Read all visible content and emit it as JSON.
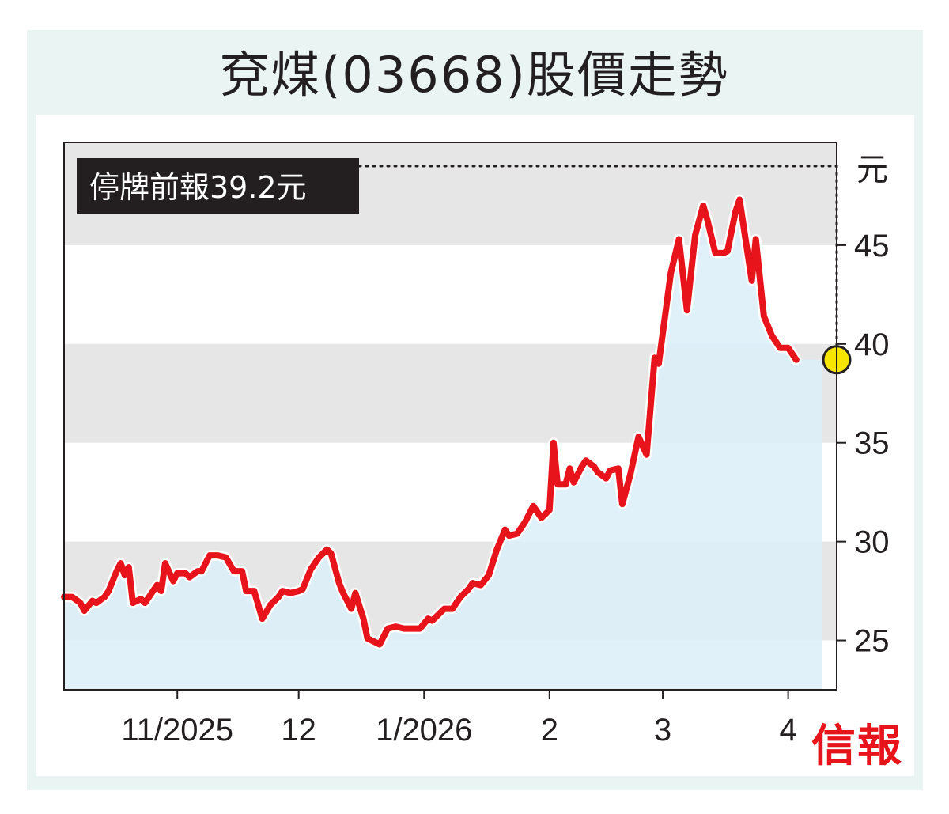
{
  "title": "兗煤(03668)股價走勢",
  "logo": "信報",
  "colors": {
    "line": "#e8141c",
    "area": "#dbeef9",
    "band": "#e6e6e6",
    "frame": "#eaf4f3",
    "marker": "#f5e500"
  },
  "chart_data": {
    "type": "line",
    "title": "兗煤(03668)股價走勢",
    "ylabel": "元",
    "ylim": [
      22.5,
      50.2
    ],
    "yticks": [
      25,
      30,
      35,
      40,
      45
    ],
    "xlim": [
      "2025-10-04",
      "2026-04-13"
    ],
    "xticks": [
      {
        "date": "2025-11-01",
        "label": "11/2025"
      },
      {
        "date": "2025-12-01",
        "label": "12"
      },
      {
        "date": "2026-01-01",
        "label": "1/2026"
      },
      {
        "date": "2026-02-01",
        "label": "2"
      },
      {
        "date": "2026-03-01",
        "label": "3"
      },
      {
        "date": "2026-04-01",
        "label": "4"
      }
    ],
    "grid": "alternating horizontal bands",
    "annotation": {
      "text": "停牌前報39.2元",
      "date": "2026-04-13",
      "value": 39.2
    },
    "series": [
      {
        "points": [
          [
            "2025-10-04",
            27.2
          ],
          [
            "2025-10-06",
            27.2
          ],
          [
            "2025-10-08",
            26.9
          ],
          [
            "2025-10-09",
            26.5
          ],
          [
            "2025-10-11",
            27.0
          ],
          [
            "2025-10-12",
            26.9
          ],
          [
            "2025-10-14",
            27.2
          ],
          [
            "2025-10-15",
            27.5
          ],
          [
            "2025-10-17",
            28.5
          ],
          [
            "2025-10-18",
            28.9
          ],
          [
            "2025-10-19",
            28.3
          ],
          [
            "2025-10-20",
            28.7
          ],
          [
            "2025-10-21",
            26.9
          ],
          [
            "2025-10-23",
            27.1
          ],
          [
            "2025-10-24",
            26.9
          ],
          [
            "2025-10-25",
            27.2
          ],
          [
            "2025-10-27",
            27.8
          ],
          [
            "2025-10-28",
            27.5
          ],
          [
            "2025-10-29",
            28.9
          ],
          [
            "2025-10-31",
            28.0
          ],
          [
            "2025-11-01",
            28.4
          ],
          [
            "2025-11-03",
            28.4
          ],
          [
            "2025-11-04",
            28.2
          ],
          [
            "2025-11-06",
            28.5
          ],
          [
            "2025-11-07",
            28.5
          ],
          [
            "2025-11-09",
            29.3
          ],
          [
            "2025-11-11",
            29.3
          ],
          [
            "2025-11-13",
            29.2
          ],
          [
            "2025-11-15",
            28.5
          ],
          [
            "2025-11-17",
            28.5
          ],
          [
            "2025-11-18",
            27.5
          ],
          [
            "2025-11-20",
            27.5
          ],
          [
            "2025-11-22",
            26.1
          ],
          [
            "2025-11-24",
            26.8
          ],
          [
            "2025-11-26",
            27.2
          ],
          [
            "2025-11-27",
            27.5
          ],
          [
            "2025-11-29",
            27.4
          ],
          [
            "2025-12-01",
            27.5
          ],
          [
            "2025-12-02",
            27.6
          ],
          [
            "2025-12-04",
            28.6
          ],
          [
            "2025-12-06",
            29.2
          ],
          [
            "2025-12-08",
            29.6
          ],
          [
            "2025-12-09",
            29.4
          ],
          [
            "2025-12-11",
            27.9
          ],
          [
            "2025-12-12",
            27.4
          ],
          [
            "2025-12-14",
            26.6
          ],
          [
            "2025-12-15",
            27.4
          ],
          [
            "2025-12-17",
            26.1
          ],
          [
            "2025-12-18",
            25.1
          ],
          [
            "2025-12-20",
            24.9
          ],
          [
            "2025-12-21",
            24.8
          ],
          [
            "2025-12-23",
            25.6
          ],
          [
            "2025-12-25",
            25.7
          ],
          [
            "2025-12-27",
            25.6
          ],
          [
            "2025-12-28",
            25.6
          ],
          [
            "2025-12-31",
            25.6
          ],
          [
            "2026-01-02",
            26.1
          ],
          [
            "2026-01-03",
            26.0
          ],
          [
            "2026-01-05",
            26.4
          ],
          [
            "2026-01-06",
            26.6
          ],
          [
            "2026-01-08",
            26.6
          ],
          [
            "2026-01-10",
            27.2
          ],
          [
            "2026-01-12",
            27.6
          ],
          [
            "2026-01-13",
            27.9
          ],
          [
            "2026-01-15",
            27.8
          ],
          [
            "2026-01-17",
            28.3
          ],
          [
            "2026-01-19",
            29.6
          ],
          [
            "2026-01-21",
            30.6
          ],
          [
            "2026-01-22",
            30.3
          ],
          [
            "2026-01-24",
            30.4
          ],
          [
            "2026-01-26",
            31.0
          ],
          [
            "2026-01-28",
            31.8
          ],
          [
            "2026-01-30",
            31.2
          ],
          [
            "2026-02-01",
            31.6
          ],
          [
            "2026-02-02",
            35.0
          ],
          [
            "2026-02-03",
            32.9
          ],
          [
            "2026-02-05",
            32.9
          ],
          [
            "2026-02-06",
            33.7
          ],
          [
            "2026-02-07",
            33.0
          ],
          [
            "2026-02-09",
            33.8
          ],
          [
            "2026-02-10",
            34.1
          ],
          [
            "2026-02-12",
            33.8
          ],
          [
            "2026-02-13",
            33.5
          ],
          [
            "2026-02-15",
            33.2
          ],
          [
            "2026-02-16",
            33.6
          ],
          [
            "2026-02-18",
            33.7
          ],
          [
            "2026-02-19",
            31.9
          ],
          [
            "2026-02-21",
            33.4
          ],
          [
            "2026-02-23",
            35.3
          ],
          [
            "2026-02-25",
            34.4
          ],
          [
            "2026-02-27",
            39.3
          ],
          [
            "2026-02-28",
            39.0
          ],
          [
            "2026-03-03",
            43.6
          ],
          [
            "2026-03-05",
            45.3
          ],
          [
            "2026-03-07",
            41.7
          ],
          [
            "2026-03-09",
            45.5
          ],
          [
            "2026-03-11",
            47.0
          ],
          [
            "2026-03-12",
            46.3
          ],
          [
            "2026-03-14",
            44.6
          ],
          [
            "2026-03-16",
            44.6
          ],
          [
            "2026-03-17",
            44.7
          ],
          [
            "2026-03-19",
            46.7
          ],
          [
            "2026-03-20",
            47.3
          ],
          [
            "2026-03-23",
            43.2
          ],
          [
            "2026-03-24",
            45.3
          ],
          [
            "2026-03-26",
            41.4
          ],
          [
            "2026-03-28",
            40.4
          ],
          [
            "2026-03-30",
            39.8
          ],
          [
            "2026-04-01",
            39.8
          ],
          [
            "2026-04-03",
            39.2
          ]
        ]
      }
    ]
  }
}
